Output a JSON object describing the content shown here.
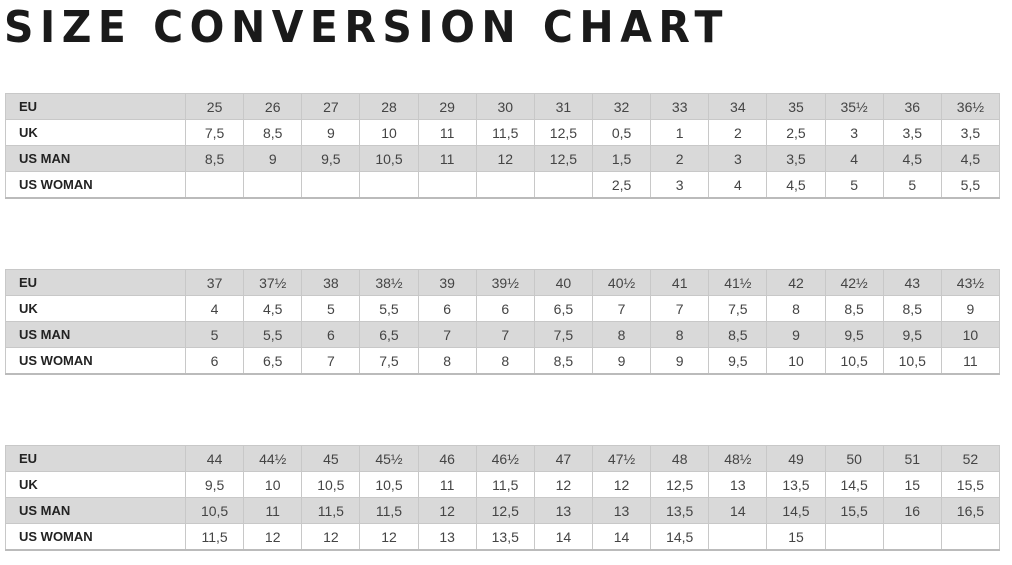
{
  "title": "SIZE CONVERSION CHART",
  "row_labels": [
    "EU",
    "UK",
    "US MAN",
    "US WOMAN"
  ],
  "tables": [
    {
      "rows": [
        [
          "25",
          "26",
          "27",
          "28",
          "29",
          "30",
          "31",
          "32",
          "33",
          "34",
          "35",
          "35½",
          "36",
          "36½"
        ],
        [
          "7,5",
          "8,5",
          "9",
          "10",
          "11",
          "11,5",
          "12,5",
          "0,5",
          "1",
          "2",
          "2,5",
          "3",
          "3,5",
          "3,5"
        ],
        [
          "8,5",
          "9",
          "9,5",
          "10,5",
          "11",
          "12",
          "12,5",
          "1,5",
          "2",
          "3",
          "3,5",
          "4",
          "4,5",
          "4,5"
        ],
        [
          "",
          "",
          "",
          "",
          "",
          "",
          "",
          "2,5",
          "3",
          "4",
          "4,5",
          "5",
          "5",
          "5,5"
        ]
      ]
    },
    {
      "rows": [
        [
          "37",
          "37½",
          "38",
          "38½",
          "39",
          "39½",
          "40",
          "40½",
          "41",
          "41½",
          "42",
          "42½",
          "43",
          "43½"
        ],
        [
          "4",
          "4,5",
          "5",
          "5,5",
          "6",
          "6",
          "6,5",
          "7",
          "7",
          "7,5",
          "8",
          "8,5",
          "8,5",
          "9"
        ],
        [
          "5",
          "5,5",
          "6",
          "6,5",
          "7",
          "7",
          "7,5",
          "8",
          "8",
          "8,5",
          "9",
          "9,5",
          "9,5",
          "10"
        ],
        [
          "6",
          "6,5",
          "7",
          "7,5",
          "8",
          "8",
          "8,5",
          "9",
          "9",
          "9,5",
          "10",
          "10,5",
          "10,5",
          "11"
        ]
      ]
    },
    {
      "rows": [
        [
          "44",
          "44½",
          "45",
          "45½",
          "46",
          "46½",
          "47",
          "47½",
          "48",
          "48½",
          "49",
          "50",
          "51",
          "52"
        ],
        [
          "9,5",
          "10",
          "10,5",
          "10,5",
          "11",
          "11,5",
          "12",
          "12",
          "12,5",
          "13",
          "13,5",
          "14,5",
          "15",
          "15,5"
        ],
        [
          "10,5",
          "11",
          "11,5",
          "11,5",
          "12",
          "12,5",
          "13",
          "13",
          "13,5",
          "14",
          "14,5",
          "15,5",
          "16",
          "16,5"
        ],
        [
          "11,5",
          "12",
          "12",
          "12",
          "13",
          "13,5",
          "14",
          "14",
          "14,5",
          "",
          "15",
          "",
          "",
          ""
        ]
      ]
    }
  ],
  "colors": {
    "header_row": "#d9d9d9",
    "row_alt": "#ffffff",
    "border": "#c8c8c8",
    "title": "#1a1a1a"
  }
}
